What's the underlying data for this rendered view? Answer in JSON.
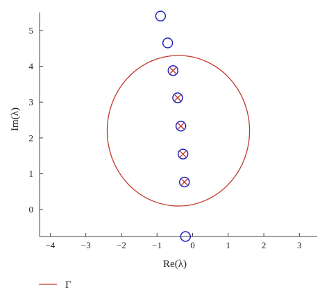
{
  "chart_data": {
    "type": "scatter",
    "xlabel": "Re(λ)",
    "ylabel": "Im(λ)",
    "xlim": [
      -4.3,
      3.5
    ],
    "ylim": [
      -0.75,
      5.5
    ],
    "x_ticks": [
      -4,
      -3,
      -2,
      -1,
      0,
      1,
      2,
      3
    ],
    "x_tick_labels": [
      "−4",
      "−3",
      "−2",
      "−1",
      "0",
      "1",
      "2",
      "3"
    ],
    "y_ticks": [
      0,
      1,
      2,
      3,
      4,
      5
    ],
    "y_tick_labels": [
      "0",
      "1",
      "2",
      "3",
      "4",
      "5"
    ],
    "grid": false,
    "legend": {
      "position": "bottom-left",
      "entries": [
        {
          "label": "Γ",
          "color": "#c0392b"
        }
      ]
    },
    "series": [
      {
        "type": "circle-markers",
        "color": "#2222bb",
        "points": [
          {
            "x": -0.9,
            "y": 5.4
          },
          {
            "x": -0.7,
            "y": 4.65
          },
          {
            "x": -0.55,
            "y": 3.88
          },
          {
            "x": -0.42,
            "y": 3.12
          },
          {
            "x": -0.33,
            "y": 2.33
          },
          {
            "x": -0.27,
            "y": 1.55
          },
          {
            "x": -0.23,
            "y": 0.77
          },
          {
            "x": -0.2,
            "y": -0.75
          }
        ]
      },
      {
        "type": "cross-markers",
        "color": "#c0392b",
        "points": [
          {
            "x": -0.55,
            "y": 3.88
          },
          {
            "x": -0.42,
            "y": 3.12
          },
          {
            "x": -0.33,
            "y": 2.33
          },
          {
            "x": -0.27,
            "y": 1.55
          },
          {
            "x": -0.23,
            "y": 0.77
          }
        ]
      },
      {
        "type": "contour",
        "name": "Γ",
        "color": "#c0392b",
        "center": {
          "x": -0.4,
          "y": 2.2
        },
        "radius_x": 2.0,
        "radius_y": 2.1
      }
    ]
  }
}
